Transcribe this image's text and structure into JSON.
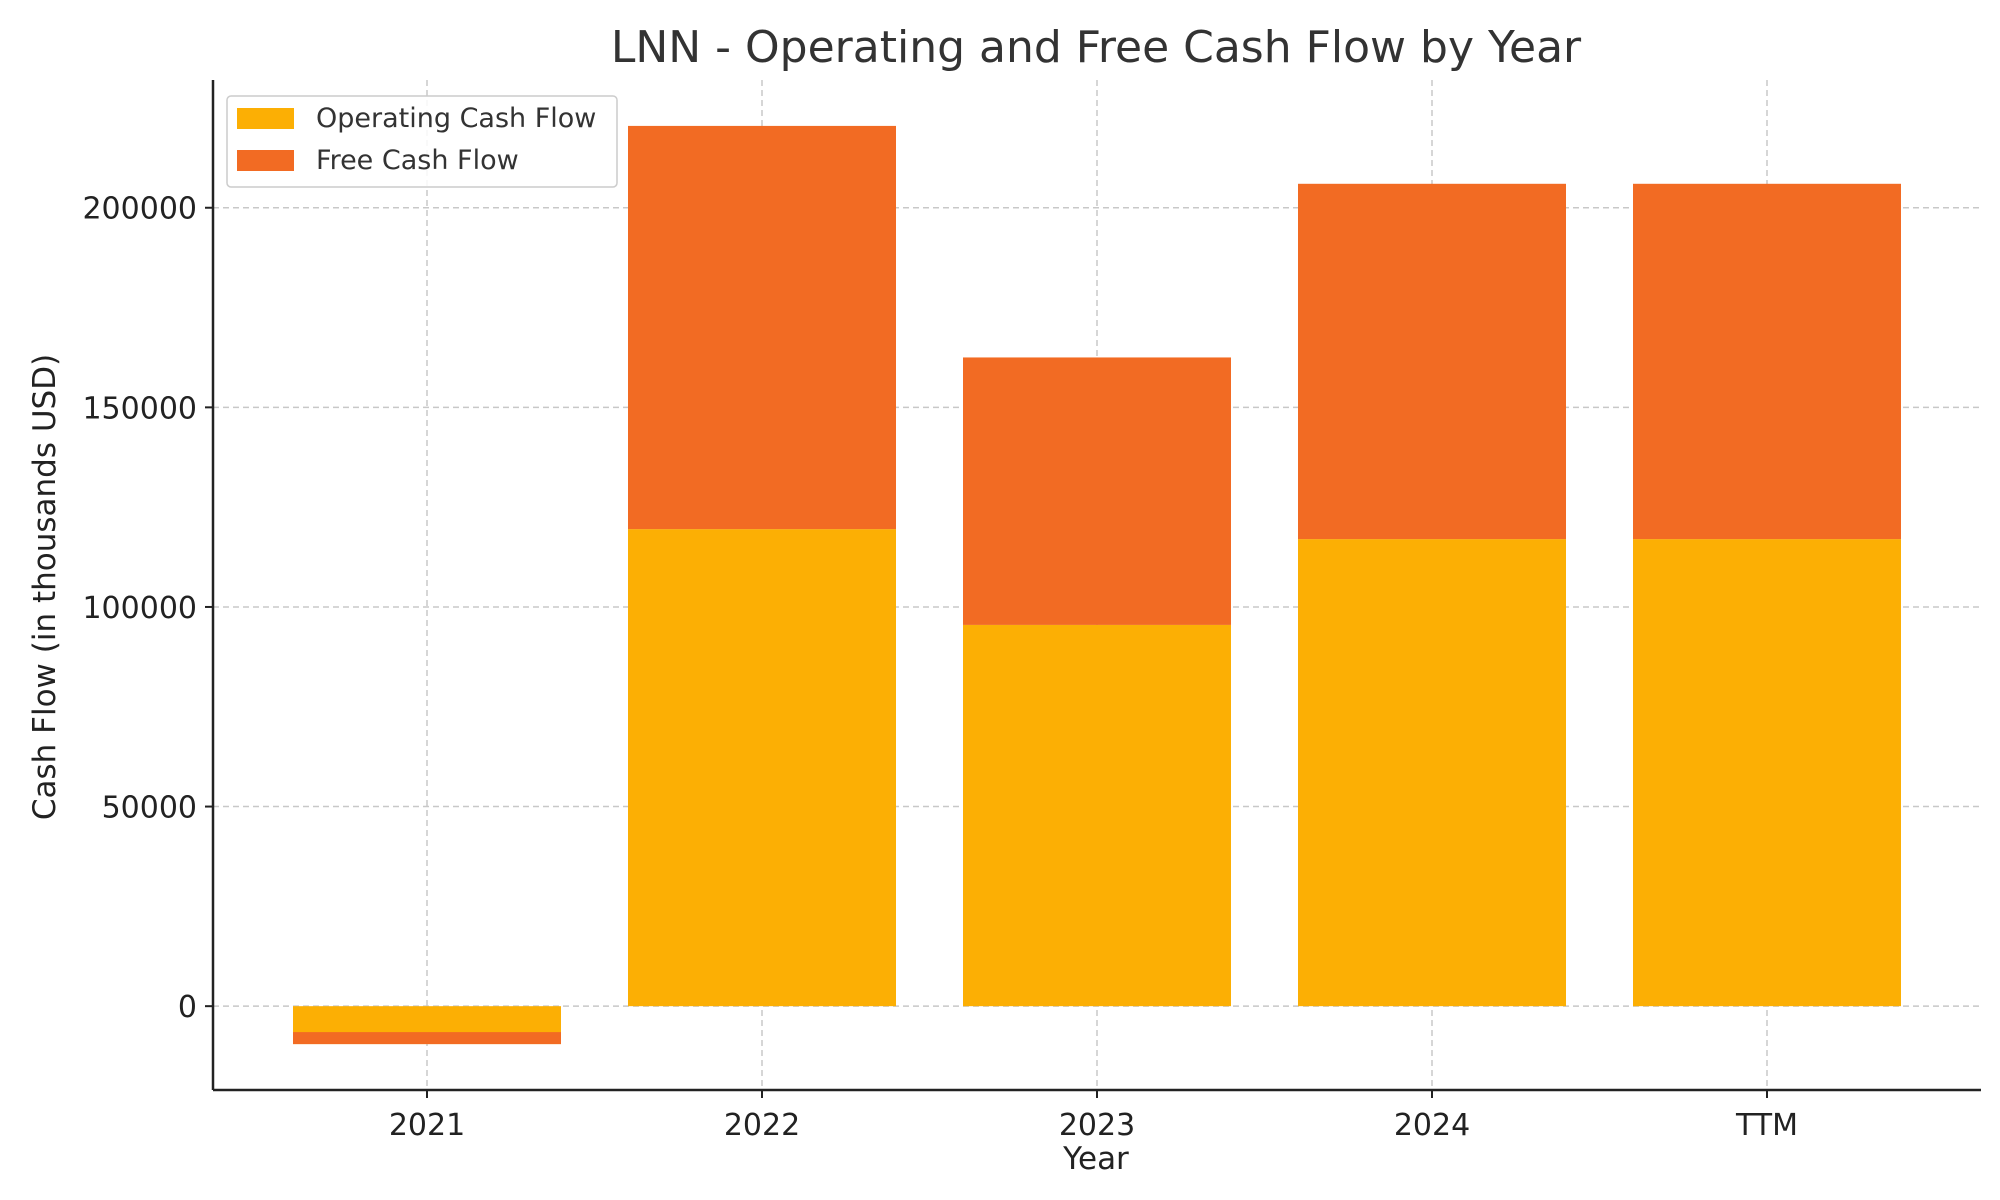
{
  "chart_data": {
    "type": "bar",
    "stacked": true,
    "title": "LNN - Operating and Free Cash Flow by Year",
    "xlabel": "Year",
    "ylabel": "Cash Flow (in thousands USD)",
    "categories": [
      "2021",
      "2022",
      "2023",
      "2024",
      "TTM"
    ],
    "series": [
      {
        "name": "Operating Cash Flow",
        "color": "#FCAF04",
        "values": [
          -9500,
          119500,
          95500,
          117000,
          117000
        ]
      },
      {
        "name": "Free Cash Flow",
        "color": "#F26B23",
        "values": [
          3000,
          101000,
          67000,
          89000,
          89000
        ]
      }
    ],
    "ylim": [
      -21000,
      232000
    ],
    "yticks": [
      0,
      50000,
      100000,
      150000,
      200000
    ],
    "grid": true,
    "legend_position": "top-left"
  }
}
